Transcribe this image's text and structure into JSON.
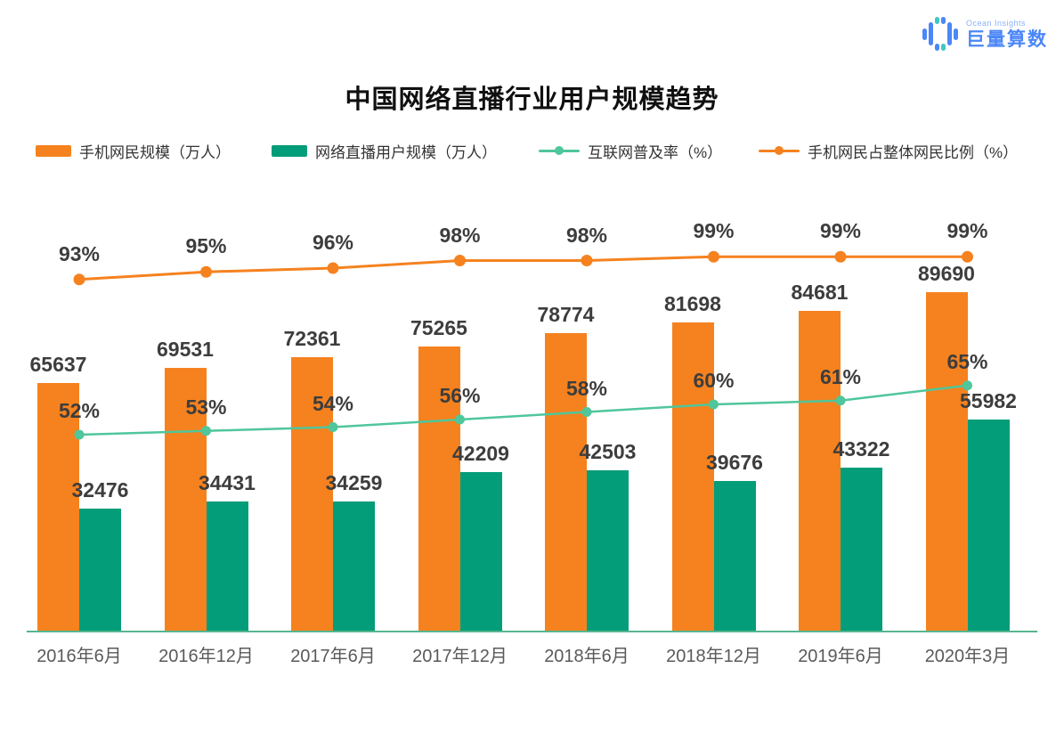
{
  "logo": {
    "brand_en": "Ocean Insights",
    "brand_cn": "巨量算数"
  },
  "title": "中国网络直播行业用户规模趋势",
  "chart_data": {
    "type": "bar",
    "subtype": "bar-line-combo",
    "title": "中国网络直播行业用户规模趋势",
    "xlabel": "",
    "ylabel": "",
    "legend_position": "top",
    "value_axis_visible": false,
    "categories": [
      "2016年6月",
      "2016年12月",
      "2017年6月",
      "2017年12月",
      "2018年6月",
      "2018年12月",
      "2019年6月",
      "2020年3月"
    ],
    "series": [
      {
        "name": "手机网民规模（万人）",
        "type": "bar",
        "unit": "万人",
        "color": "#F5821F",
        "values": [
          65637,
          69531,
          72361,
          75265,
          78774,
          81698,
          84681,
          89690
        ]
      },
      {
        "name": "网络直播用户规模（万人）",
        "type": "bar",
        "unit": "万人",
        "color": "#039D79",
        "values": [
          32476,
          34431,
          34259,
          42209,
          42503,
          39676,
          43322,
          55982
        ]
      },
      {
        "name": "互联网普及率（%）",
        "type": "line",
        "unit": "%",
        "color": "#4FC69B",
        "values": [
          52,
          53,
          54,
          56,
          58,
          60,
          61,
          65
        ]
      },
      {
        "name": "手机网民占整体网民比例（%）",
        "type": "line",
        "unit": "%",
        "color": "#F5821F",
        "values": [
          93,
          95,
          96,
          98,
          98,
          99,
          99,
          99
        ]
      }
    ]
  }
}
